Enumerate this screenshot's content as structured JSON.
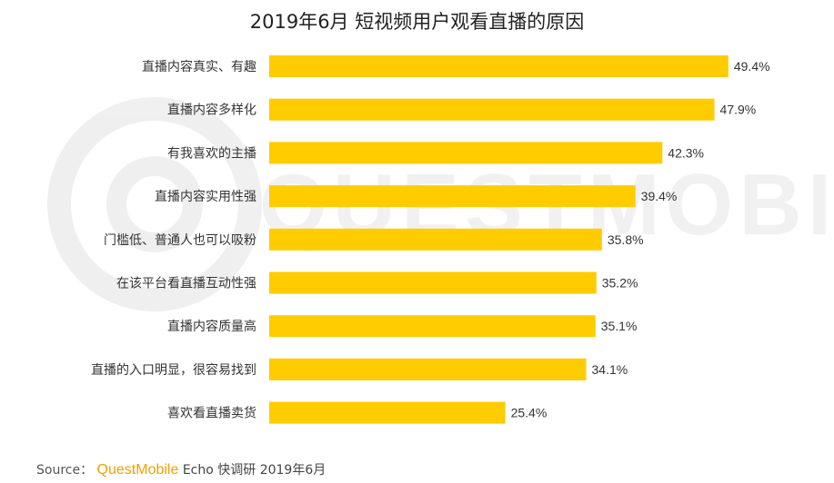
{
  "chart_data": {
    "type": "bar",
    "orientation": "horizontal",
    "title": "2019年6月 短视频用户观看直播的原因",
    "categories": [
      "直播内容真实、有趣",
      "直播内容多样化",
      "有我喜欢的主播",
      "直播内容实用性强",
      "门槛低、普通人也可以吸粉",
      "在该平台看直播互动性强",
      "直播内容质量高",
      "直播的入口明显，很容易找到",
      "喜欢看直播卖货"
    ],
    "values": [
      49.4,
      47.9,
      42.3,
      39.4,
      35.8,
      35.2,
      35.1,
      34.1,
      25.4
    ],
    "value_labels": [
      "49.4%",
      "47.9%",
      "42.3%",
      "39.4%",
      "35.8%",
      "35.2%",
      "35.1%",
      "34.1%",
      "25.4%"
    ],
    "xlim": [
      0,
      50
    ],
    "bar_color": "#FFCC00",
    "grid": false
  },
  "source": {
    "label": "Source：",
    "brand": "QuestMobile",
    "text": "Echo 快调研 2019年6月"
  },
  "watermark": "QUESTMOBILE",
  "colors": {
    "bar": "#FFCC00",
    "brand": "#F5A000",
    "text": "#333333"
  }
}
